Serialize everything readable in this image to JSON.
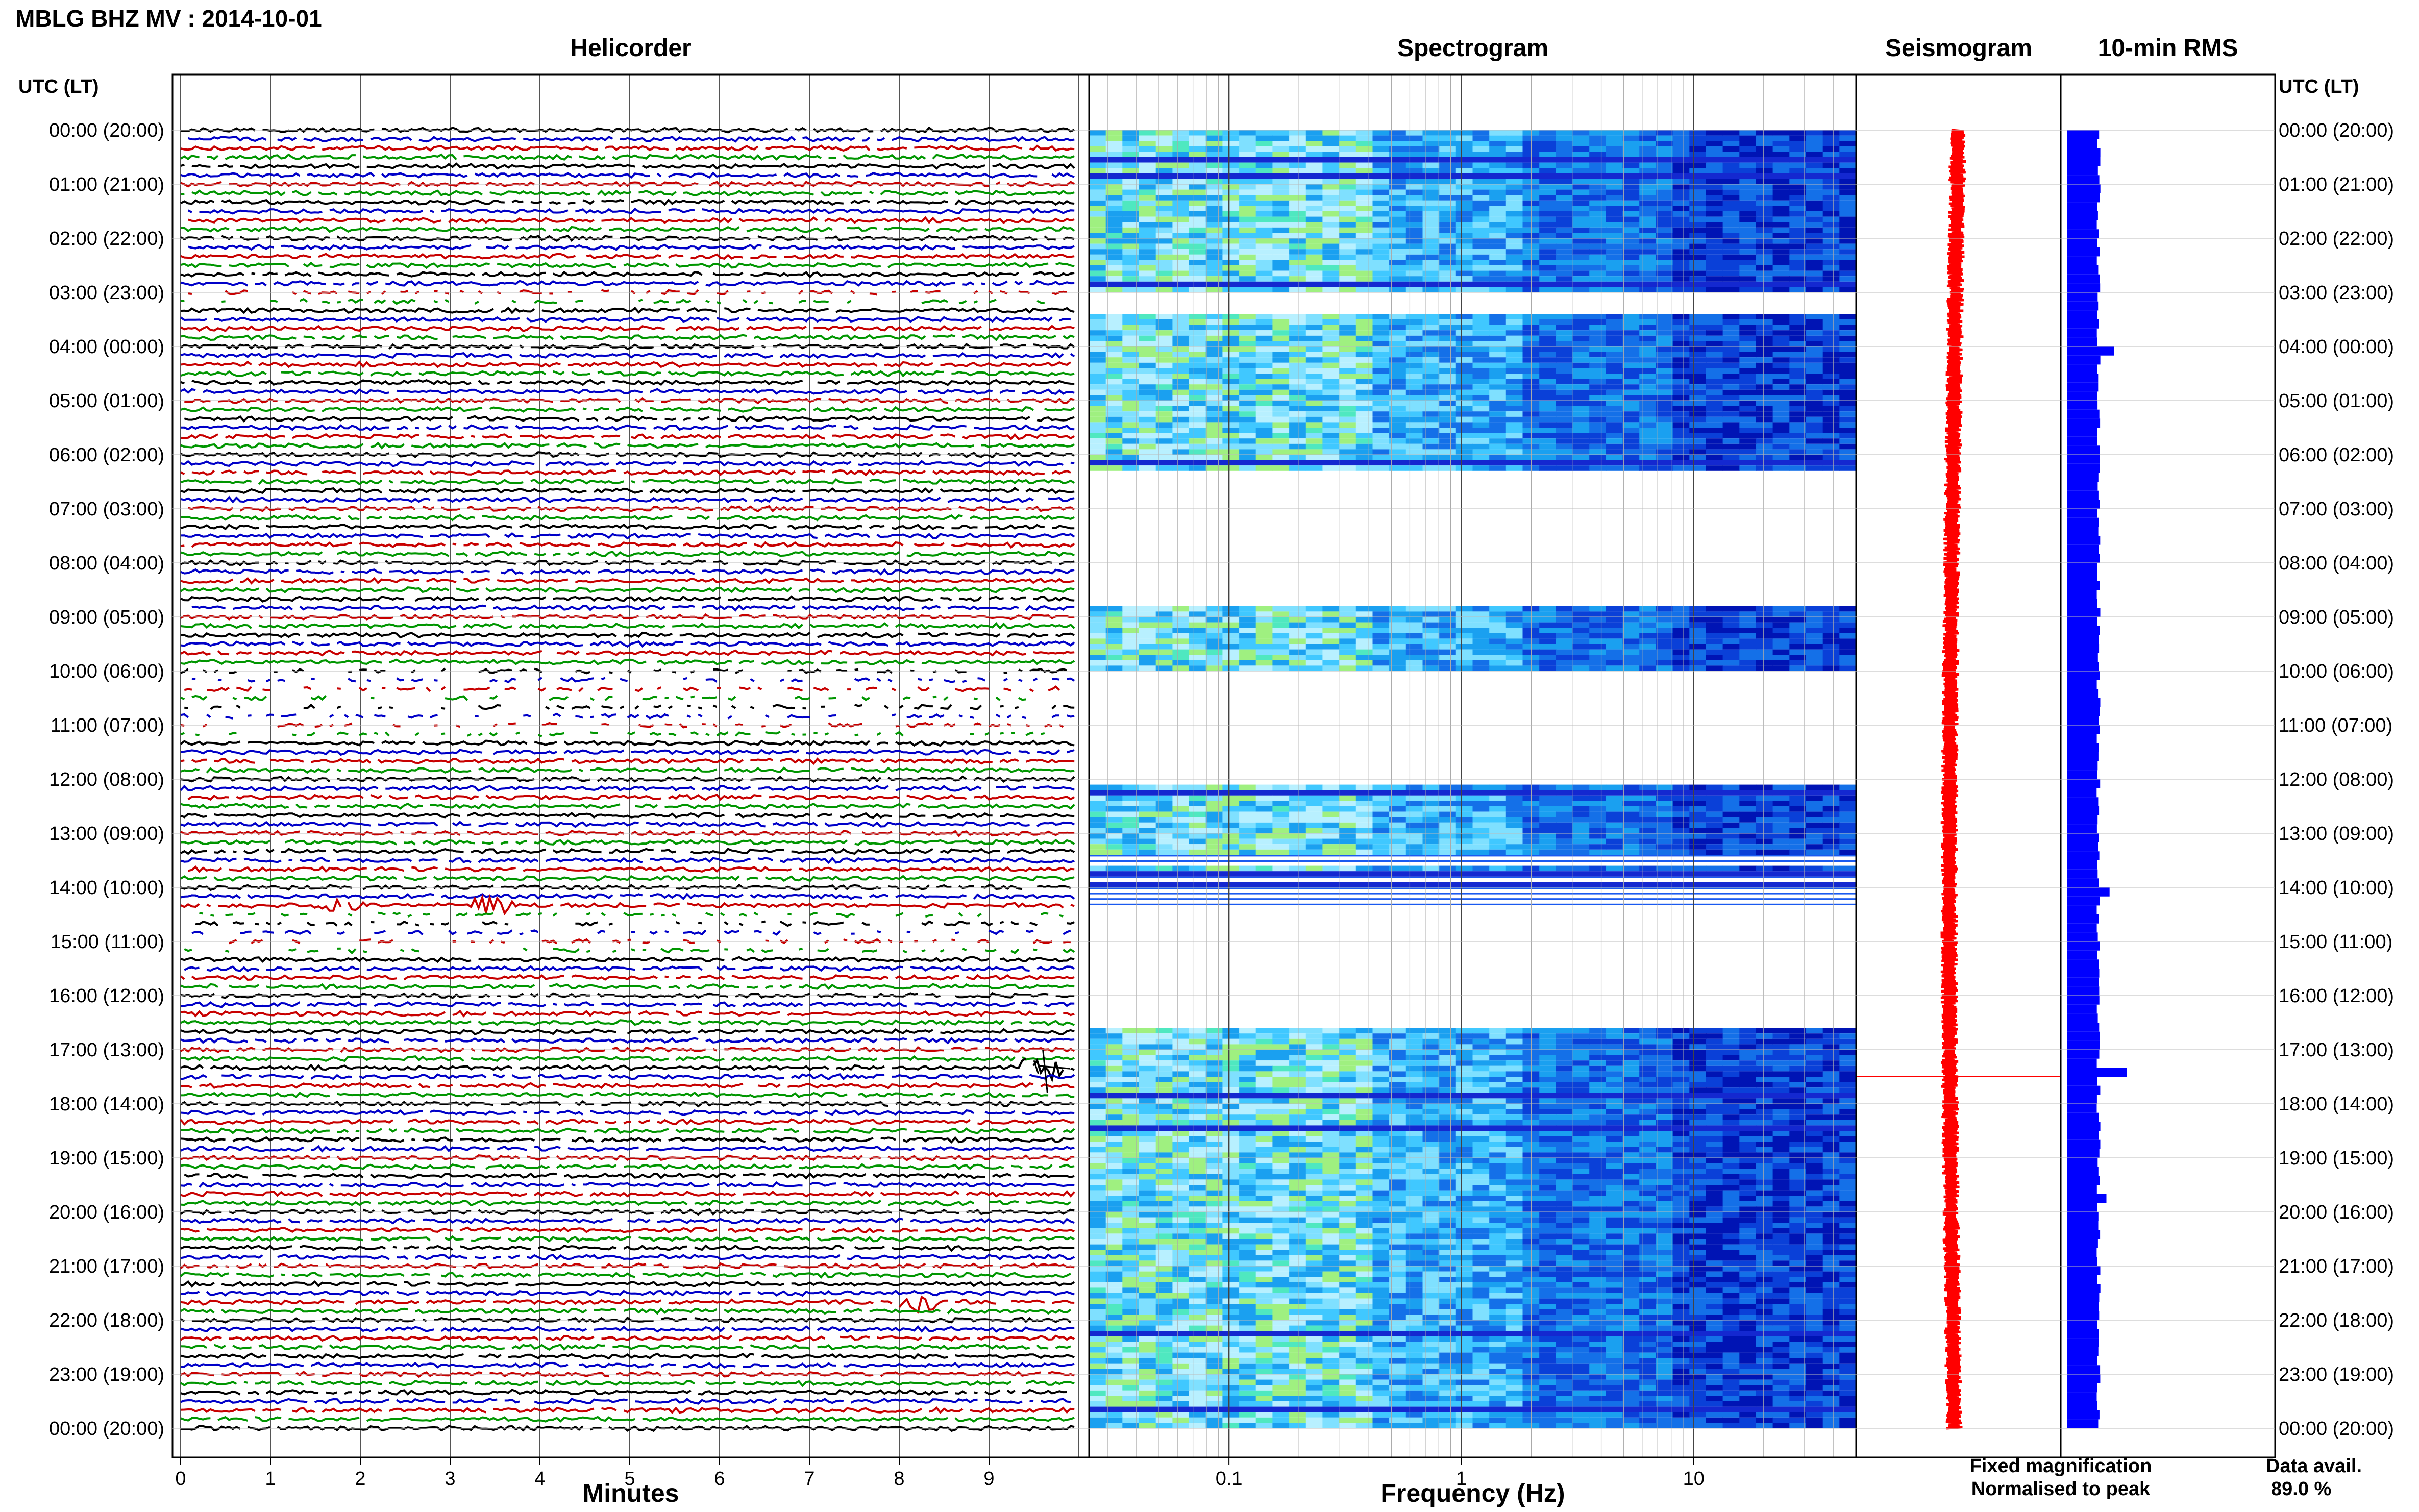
{
  "figure": {
    "title": "MBLG BHZ MV : 2014-10-01",
    "time_label": "UTC (LT)",
    "legend_fixed": "Fixed magnification",
    "legend_normalised": "Normalised to peak",
    "legend_fixed_color": "#0000ff",
    "legend_normalised_color": "#ff0000",
    "data_avail_label": "Data avail.",
    "data_avail_value": "89.0 %"
  },
  "chart_data": [
    {
      "id": "helicorder",
      "type": "line",
      "title": "Helicorder",
      "xlabel": "Minutes",
      "ylabel": "",
      "xlim": [
        0,
        10
      ],
      "x_ticks": [
        0,
        1,
        2,
        3,
        4,
        5,
        6,
        7,
        8,
        9
      ],
      "y_ticks": [
        "00:00 (20:00)",
        "01:00 (21:00)",
        "02:00 (22:00)",
        "03:00 (23:00)",
        "04:00 (00:00)",
        "05:00 (01:00)",
        "06:00 (02:00)",
        "07:00 (03:00)",
        "08:00 (04:00)",
        "09:00 (05:00)",
        "10:00 (06:00)",
        "11:00 (07:00)",
        "12:00 (08:00)",
        "13:00 (09:00)",
        "14:00 (10:00)",
        "15:00 (11:00)",
        "16:00 (12:00)",
        "17:00 (13:00)",
        "18:00 (14:00)",
        "19:00 (15:00)",
        "20:00 (16:00)",
        "21:00 (17:00)",
        "22:00 (18:00)",
        "23:00 (19:00)",
        "00:00 (20:00)"
      ],
      "traces_per_hour": 6,
      "trace_colors": [
        "#000000",
        "#0000c8",
        "#c80000",
        "#009600"
      ],
      "gap_hours": [
        [
          3.0,
          3.2
        ],
        [
          9.9,
          11.2
        ],
        [
          14.4,
          15.3
        ]
      ],
      "events": [
        {
          "hour": 17.3,
          "minute": 9.6
        },
        {
          "hour": 14.33,
          "minute": 1.8
        },
        {
          "hour": 14.33,
          "minute": 3.5
        },
        {
          "hour": 21.7,
          "minute": 8.2
        }
      ]
    },
    {
      "id": "spectrogram",
      "type": "heatmap",
      "title": "Spectrogram",
      "xlabel": "Frequency (Hz)",
      "x_scale": "log",
      "xlim": [
        0.025,
        50
      ],
      "x_ticks": [
        0.1,
        1,
        10
      ],
      "x_tick_labels": [
        "0.1",
        "1",
        "10"
      ],
      "data_hours": [
        [
          0.0,
          3.0
        ],
        [
          3.4,
          6.2
        ],
        [
          8.7,
          9.9
        ],
        [
          12.0,
          14.3
        ],
        [
          16.5,
          24.0
        ]
      ],
      "sparse_hours": [
        [
          6.2,
          8.7
        ],
        [
          13.1,
          14.3
        ],
        [
          15.9,
          16.0
        ]
      ]
    },
    {
      "id": "seismogram",
      "type": "line",
      "title": "Seismogram",
      "color": "#ff0000",
      "spike_hour": 17.5
    },
    {
      "id": "rms",
      "type": "bar",
      "title": "10-min RMS",
      "color": "#0000ff",
      "peaks": [
        {
          "hour": 4.0,
          "value": 1.5
        },
        {
          "hour": 14.0,
          "value": 1.35
        },
        {
          "hour": 17.4,
          "value": 1.9
        },
        {
          "hour": 19.6,
          "value": 1.25
        }
      ]
    }
  ]
}
